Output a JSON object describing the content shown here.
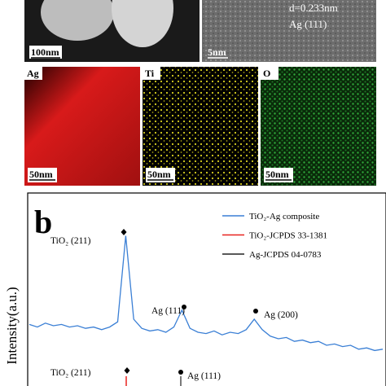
{
  "images": {
    "tem_scale": "100nm",
    "hrtem_scale": "5nm",
    "d_spacing": "d=0.233nm",
    "plane": "Ag (111)",
    "maps": [
      {
        "label": "Ag",
        "scale": "50nm"
      },
      {
        "label": "Ti",
        "scale": "50nm"
      },
      {
        "label": "O",
        "scale": "50nm"
      }
    ]
  },
  "chart_data": {
    "type": "line",
    "panel_label": "b",
    "y_label": "Intensity(a.u.)",
    "ylim": [
      0,
      100
    ],
    "series": [
      {
        "name": "TiO₂-Ag composite",
        "color": "#3a7fd5",
        "values": [
          26,
          24,
          27,
          25,
          26,
          24,
          25,
          23,
          24,
          22,
          24,
          28,
          94,
          30,
          23,
          21,
          22,
          20,
          24,
          37,
          23,
          20,
          19,
          21,
          18,
          20,
          19,
          22,
          30,
          22,
          17,
          15,
          16,
          13,
          14,
          12,
          13,
          10,
          11,
          9,
          10,
          7,
          8,
          6,
          7
        ]
      }
    ],
    "reference_patterns": [
      {
        "name": "TiO₂-JCPDS 33-1381",
        "color": "#e8231f"
      },
      {
        "name": "Ag-JCPDS 04-0783",
        "color": "#222222"
      }
    ],
    "annotations": [
      {
        "text": "TiO₂ (211)",
        "marker": "diamond"
      },
      {
        "text": "Ag (111)",
        "marker": "dot"
      },
      {
        "text": "Ag (200)",
        "marker": "dot"
      },
      {
        "text": "TiO₂ (211)",
        "marker": "diamond"
      },
      {
        "text": "Ag (111)",
        "marker": "dot"
      }
    ]
  }
}
